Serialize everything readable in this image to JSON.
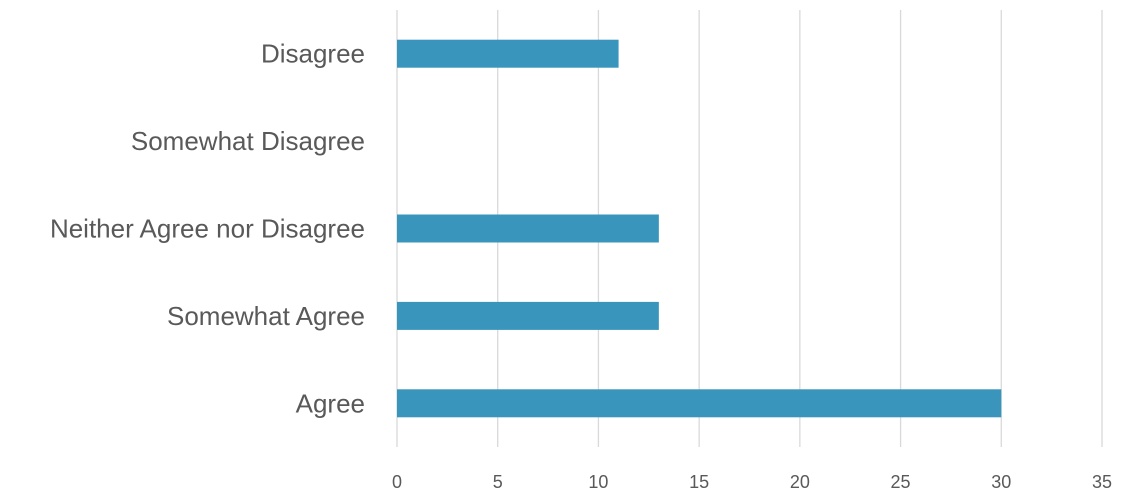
{
  "chart_data": {
    "type": "bar",
    "orientation": "horizontal",
    "categories": [
      "Disagree",
      "Somewhat Disagree",
      "Neither Agree nor Disagree",
      "Somewhat Agree",
      "Agree"
    ],
    "values": [
      11,
      0,
      13,
      13,
      30
    ],
    "xlim": [
      0,
      35
    ],
    "xticks": [
      0,
      5,
      10,
      15,
      20,
      25,
      30,
      35
    ],
    "title": "",
    "xlabel": "",
    "ylabel": "",
    "grid": "vertical",
    "legend": "none",
    "bar_color": "#3a95bd"
  }
}
